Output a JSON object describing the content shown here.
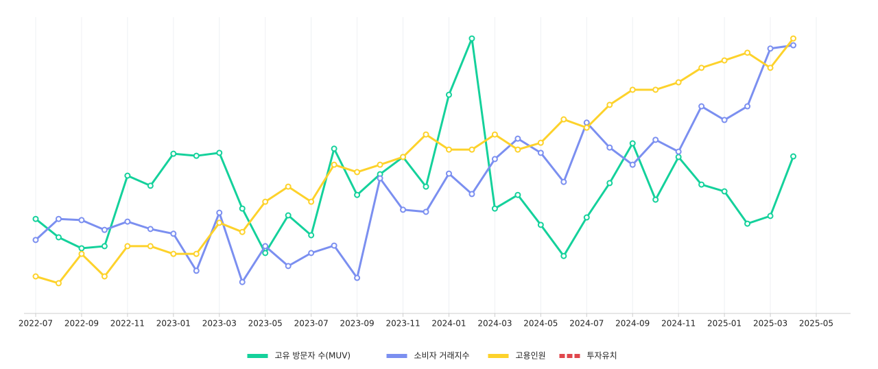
{
  "chart_data": {
    "type": "line",
    "x": [
      "2022-07",
      "2022-08",
      "2022-09",
      "2022-10",
      "2022-11",
      "2022-12",
      "2023-01",
      "2023-02",
      "2023-03",
      "2023-04",
      "2023-05",
      "2023-06",
      "2023-07",
      "2023-08",
      "2023-09",
      "2023-10",
      "2023-11",
      "2023-12",
      "2024-01",
      "2024-02",
      "2024-03",
      "2024-04",
      "2024-05",
      "2024-06",
      "2024-07",
      "2024-08",
      "2024-09",
      "2024-10",
      "2024-11",
      "2024-12",
      "2025-01",
      "2025-02",
      "2025-03",
      "2025-04"
    ],
    "xticks": [
      "2022-07",
      "2022-09",
      "2022-11",
      "2023-01",
      "2023-03",
      "2023-05",
      "2023-07",
      "2023-09",
      "2023-11",
      "2024-01",
      "2024-03",
      "2024-05",
      "2024-07",
      "2024-09",
      "2024-11",
      "2025-01",
      "2025-03",
      "2025-05"
    ],
    "ylim": [
      0,
      100
    ],
    "grid": true,
    "series": [
      {
        "name": "고유 방문자 수(MUV)",
        "color": "#14d19b",
        "values": [
          31.9,
          25.7,
          22.0,
          22.7,
          46.5,
          43.1,
          53.9,
          53.2,
          54.2,
          35.4,
          20.4,
          33.1,
          26.4,
          55.6,
          40.0,
          47.0,
          52.8,
          42.8,
          73.8,
          92.8,
          35.4,
          40.0,
          29.9,
          19.4,
          32.4,
          44.0,
          57.4,
          38.4,
          52.8,
          43.5,
          41.2,
          30.3,
          32.9,
          53.0
        ]
      },
      {
        "name": "소비자 거래지수",
        "color": "#7b8ff0",
        "values": [
          24.8,
          31.9,
          31.5,
          28.2,
          31.0,
          28.5,
          26.9,
          14.4,
          34.0,
          10.6,
          22.7,
          16.0,
          20.4,
          22.9,
          12.0,
          45.6,
          35.0,
          34.3,
          47.2,
          40.3,
          52.1,
          59.0,
          54.2,
          44.4,
          64.4,
          56.0,
          50.2,
          58.6,
          54.6,
          69.9,
          65.3,
          69.9,
          89.4,
          90.5
        ]
      },
      {
        "name": "고용인원",
        "color": "#fdd22b",
        "values": [
          12.5,
          10.2,
          20.1,
          12.5,
          22.7,
          22.7,
          20.1,
          20.1,
          30.6,
          27.5,
          37.7,
          42.8,
          37.7,
          50.2,
          47.7,
          50.2,
          52.8,
          60.4,
          55.3,
          55.3,
          60.4,
          55.3,
          57.6,
          65.5,
          62.7,
          70.4,
          75.5,
          75.5,
          78.0,
          82.9,
          85.4,
          88.0,
          82.9,
          92.8
        ]
      },
      {
        "name": "투자유치",
        "color": "#e0474c",
        "dashed": true,
        "values": [
          null,
          null,
          null,
          null,
          null,
          null,
          null,
          null,
          null,
          null,
          null,
          null,
          null,
          null,
          null,
          null,
          null,
          null,
          null,
          null,
          null,
          null,
          null,
          null,
          null,
          null,
          null,
          null,
          null,
          null,
          null,
          null,
          null,
          null
        ]
      }
    ]
  }
}
